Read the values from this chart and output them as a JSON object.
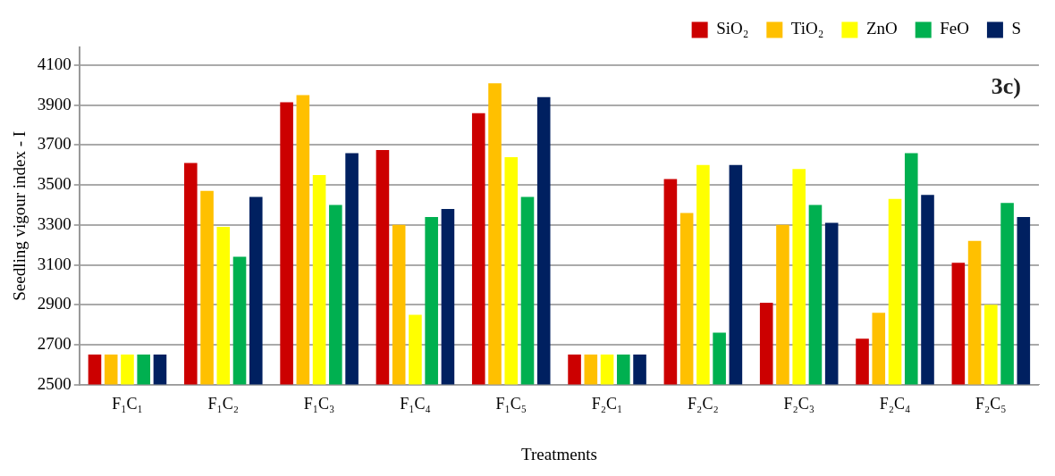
{
  "chart_data": {
    "type": "bar",
    "xlabel": "Treatments",
    "ylabel": "Seedling vigour index - I",
    "categories": [
      "F₁C₁",
      "F₁C₂",
      "F₁C₃",
      "F₁C₄",
      "F₁C₅",
      "F₂C₁",
      "F₂C₂",
      "F₂C₃",
      "F₂C₄",
      "F₂C₅"
    ],
    "series": [
      {
        "name": "SiO₂",
        "color": "#cc0000",
        "values": [
          2650,
          3610,
          3915,
          3675,
          3860,
          2650,
          3530,
          2910,
          2730,
          3110
        ]
      },
      {
        "name": "TiO₂",
        "color": "#ffc000",
        "values": [
          2650,
          3470,
          3950,
          3300,
          4010,
          2650,
          3360,
          3300,
          2860,
          3220
        ]
      },
      {
        "name": "ZnO",
        "color": "#ffff00",
        "values": [
          2650,
          3290,
          3550,
          2850,
          3640,
          2650,
          3600,
          3580,
          3430,
          2900
        ]
      },
      {
        "name": "FeO",
        "color": "#00b050",
        "values": [
          2650,
          3140,
          3400,
          3340,
          3440,
          2650,
          2760,
          3400,
          3660,
          3410
        ]
      },
      {
        "name": "S",
        "color": "#002060",
        "values": [
          2650,
          3440,
          3660,
          3380,
          3940,
          2650,
          3600,
          3310,
          3450,
          3340
        ]
      }
    ],
    "ylim": [
      2500,
      4190
    ],
    "yticks": [
      2500,
      2700,
      2900,
      3100,
      3300,
      3500,
      3700,
      3900,
      4100
    ],
    "grid": "y",
    "legend": "top right",
    "annotations": [
      "3c)"
    ]
  }
}
